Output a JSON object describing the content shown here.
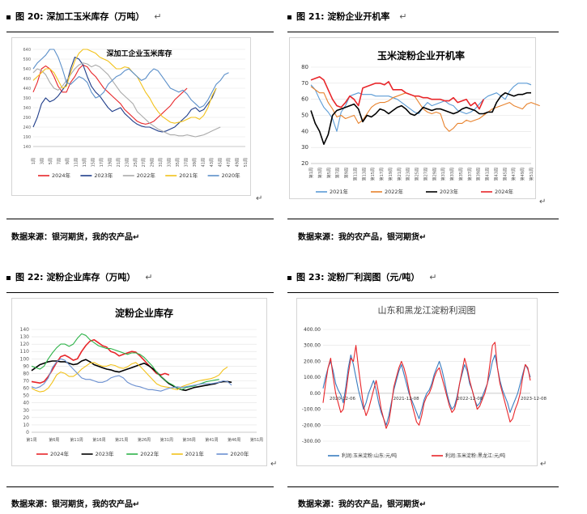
{
  "captions": {
    "c20": {
      "prefix": "图 20:",
      "title": "深加工玉米库存（万吨）"
    },
    "c21": {
      "prefix": "图 21:",
      "title": "淀粉企业开机率"
    },
    "c22": {
      "prefix": "图 22:",
      "title": "淀粉企业库存（万吨）"
    },
    "c23": {
      "prefix": "图 23:",
      "title": "淀粉厂利润图（元/吨）"
    }
  },
  "sources": {
    "left": "数据来源：银河期货，我的农产品",
    "right": "数据来源：我的农产品，银河期货"
  },
  "return_mark": "↵",
  "colors": {
    "c2024": "#e8262a",
    "c2023": "#1f3d8a",
    "c2022": "#aaaaaa",
    "c2021": "#f2c21b",
    "c2020": "#5b8fc9",
    "s21_2021": "#5b9bd5",
    "s21_2022": "#e8822c",
    "s21_2023": "#000000",
    "s21_2024": "#e8262a",
    "s22_2024": "#e8262a",
    "s22_2023": "#000000",
    "s22_2022": "#2fb34a",
    "s22_2021": "#f2c21b",
    "s22_2020": "#6a8fd0",
    "s23_sd": "#3a7dc0",
    "s23_hlj": "#e8262a"
  },
  "chart_data": [
    {
      "id": "chart20",
      "type": "line",
      "title": "深加工企业玉米库存",
      "ylim": [
        140,
        640
      ],
      "yticks": [
        140,
        190,
        240,
        290,
        340,
        390,
        440,
        490,
        540,
        590,
        640
      ],
      "x_count": 52,
      "xtick_labels": [
        "1周",
        "3周",
        "5周",
        "7周",
        "9周",
        "11周",
        "13周",
        "15周",
        "17周",
        "19周",
        "21周",
        "23周",
        "25周",
        "27周",
        "29周",
        "31周",
        "33周",
        "35周",
        "37周",
        "39周",
        "41周",
        "43周",
        "45周",
        "47周",
        "49周",
        "51周"
      ],
      "series": [
        {
          "name": "2024年",
          "color_key": "c2024",
          "values": [
            420,
            470,
            540,
            555,
            540,
            500,
            450,
            420,
            420,
            470,
            500,
            540,
            560,
            550,
            520,
            500,
            470,
            440,
            420,
            400,
            380,
            360,
            330,
            310,
            290,
            270,
            260,
            255,
            260,
            270,
            290,
            310,
            330,
            350,
            380,
            400,
            420,
            440
          ]
        },
        {
          "name": "2023年",
          "color_key": "c2023",
          "values": [
            240,
            290,
            360,
            390,
            370,
            380,
            400,
            430,
            460,
            540,
            600,
            590,
            560,
            500,
            450,
            420,
            400,
            370,
            340,
            320,
            330,
            340,
            310,
            290,
            270,
            255,
            245,
            240,
            240,
            230,
            220,
            215,
            220,
            230,
            240,
            260,
            280,
            300,
            330,
            340,
            320,
            330,
            360,
            390,
            440
          ]
        },
        {
          "name": "2022年",
          "color_key": "c2022",
          "values": [
            520,
            540,
            530,
            510,
            470,
            440,
            430,
            450,
            480,
            510,
            540,
            560,
            570,
            565,
            550,
            560,
            550,
            530,
            510,
            480,
            450,
            420,
            400,
            380,
            360,
            320,
            300,
            280,
            260,
            245,
            230,
            220,
            210,
            200,
            200,
            195,
            195,
            200,
            195,
            190,
            195,
            200,
            210,
            220,
            230,
            240
          ]
        },
        {
          "name": "2021年",
          "color_key": "c2021",
          "values": [
            480,
            500,
            520,
            540,
            540,
            520,
            480,
            440,
            450,
            520,
            580,
            620,
            640,
            640,
            630,
            620,
            600,
            590,
            580,
            560,
            540,
            540,
            550,
            545,
            520,
            500,
            460,
            420,
            390,
            350,
            320,
            295,
            280,
            265,
            260,
            265,
            270,
            280,
            290,
            290,
            280,
            300,
            340,
            400,
            440
          ]
        },
        {
          "name": "2020年",
          "color_key": "c2020",
          "values": [
            540,
            570,
            590,
            610,
            640,
            640,
            600,
            540,
            470,
            460,
            480,
            500,
            490,
            470,
            420,
            390,
            400,
            420,
            460,
            480,
            500,
            510,
            530,
            540,
            520,
            500,
            480,
            490,
            520,
            540,
            530,
            500,
            470,
            440,
            430,
            420,
            430,
            410,
            380,
            360,
            340,
            350,
            380,
            420,
            460,
            480,
            510,
            520
          ]
        }
      ],
      "legend": [
        "2024年",
        "2023年",
        "2022年",
        "2021年",
        "2020年"
      ]
    },
    {
      "id": "chart21",
      "type": "line",
      "title": "玉米淀粉企业开机率",
      "ylim": [
        20,
        80
      ],
      "yticks": [
        20,
        30,
        40,
        50,
        60,
        70,
        80
      ],
      "x_count": 52,
      "xtick_labels": [
        "第1周",
        "第3周",
        "第5周",
        "第7周",
        "第9周",
        "第11周",
        "第13周",
        "第15周",
        "第17周",
        "第19周",
        "第21周",
        "第23周",
        "第25周",
        "第27周",
        "第29周",
        "第31周",
        "第33周",
        "第35周",
        "第37周",
        "第39周",
        "第41周",
        "第43周",
        "第45周",
        "第47周",
        "第49周",
        "第51周"
      ],
      "series": [
        {
          "name": "2021年",
          "color_key": "s21_2021",
          "values": [
            69,
            66,
            60,
            55,
            52,
            48,
            40,
            52,
            56,
            62,
            63,
            64,
            63,
            63,
            63,
            62,
            62,
            62,
            62,
            61,
            60,
            58,
            56,
            54,
            52,
            51,
            55,
            58,
            56,
            57,
            58,
            59,
            57,
            56,
            53,
            52,
            51,
            52,
            54,
            57,
            60,
            62,
            63,
            64,
            62,
            60,
            65,
            68,
            70,
            70,
            70,
            69
          ]
        },
        {
          "name": "2022年",
          "color_key": "s21_2022",
          "values": [
            68,
            66,
            64,
            64,
            58,
            54,
            49,
            50,
            48,
            49,
            50,
            45,
            47,
            51,
            55,
            57,
            58,
            58,
            59,
            61,
            62,
            63,
            64,
            63,
            62,
            58,
            54,
            52,
            51,
            52,
            51,
            43,
            40,
            42,
            45,
            45,
            47,
            46,
            47,
            48,
            50,
            52,
            54,
            55,
            56,
            57,
            58,
            56,
            55,
            54,
            57,
            58,
            57,
            56
          ]
        },
        {
          "name": "2023年",
          "color_key": "s21_2023",
          "values": [
            53,
            45,
            40,
            32,
            38,
            50,
            53,
            54,
            55,
            56,
            57,
            54,
            46,
            50,
            49,
            51,
            54,
            53,
            51,
            53,
            55,
            56,
            54,
            51,
            50,
            52,
            55,
            54,
            53,
            54,
            54,
            53,
            52,
            51,
            52,
            54,
            55,
            54,
            53,
            51,
            51,
            52,
            52,
            58,
            62,
            64,
            63,
            62,
            63,
            63,
            64,
            64
          ]
        },
        {
          "name": "2024年",
          "color_key": "s21_2024",
          "values": [
            72,
            73,
            74,
            72,
            66,
            60,
            56,
            55,
            58,
            62,
            60,
            56,
            67,
            68,
            69,
            70,
            70,
            69,
            71,
            66,
            66,
            66,
            64,
            63,
            62,
            62,
            61,
            61,
            60,
            60,
            60,
            59,
            59,
            61,
            58,
            59,
            60,
            56,
            58,
            54,
            60
          ]
        }
      ],
      "legend": [
        "2021年",
        "2022年",
        "2023年",
        "2024年"
      ]
    },
    {
      "id": "chart22",
      "type": "line",
      "title": "淀粉企业库存",
      "ylim": [
        0,
        140
      ],
      "yticks": [
        0,
        10,
        20,
        30,
        40,
        50,
        60,
        70,
        80,
        90,
        100,
        110,
        120,
        130,
        140
      ],
      "x_count": 55,
      "xtick_labels": [
        "第1周",
        "第6周",
        "第11周",
        "第16周",
        "第21周",
        "第26周",
        "第31周",
        "第36周",
        "第41周",
        "第46周",
        "第51周"
      ],
      "series": [
        {
          "name": "2024年",
          "color_key": "s22_2024",
          "values": [
            69,
            68,
            67,
            69,
            76,
            85,
            95,
            103,
            105,
            102,
            98,
            100,
            110,
            118,
            124,
            126,
            122,
            118,
            116,
            110,
            108,
            104,
            106,
            108,
            110,
            109,
            104,
            98,
            92,
            86,
            80,
            78,
            80,
            78
          ]
        },
        {
          "name": "2023年",
          "color_key": "s22_2023",
          "values": [
            84,
            88,
            92,
            94,
            96,
            97,
            97,
            96,
            96,
            94,
            92,
            93,
            97,
            99,
            96,
            92,
            90,
            88,
            86,
            85,
            83,
            82,
            84,
            86,
            88,
            90,
            92,
            94,
            91,
            87,
            82,
            76,
            71,
            66,
            63,
            60,
            58,
            57,
            59,
            61,
            62,
            63,
            64,
            65,
            66,
            68,
            69,
            69,
            68
          ]
        },
        {
          "name": "2022年",
          "color_key": "s22_2022",
          "values": [
            90,
            88,
            86,
            90,
            100,
            108,
            115,
            120,
            120,
            117,
            120,
            128,
            134,
            132,
            126,
            122,
            118,
            116,
            114,
            114,
            112,
            110,
            108,
            106,
            108,
            108,
            106,
            102,
            96,
            90,
            82,
            76,
            71,
            67,
            64,
            60,
            58,
            61,
            62,
            63,
            65,
            67,
            69,
            70,
            71,
            72
          ]
        },
        {
          "name": "2021年",
          "color_key": "s22_2021",
          "values": [
            60,
            57,
            55,
            56,
            60,
            68,
            78,
            82,
            80,
            76,
            76,
            80,
            86,
            90,
            94,
            95,
            92,
            90,
            90,
            92,
            91,
            88,
            87,
            89,
            93,
            95,
            90,
            84,
            78,
            72,
            66,
            63,
            62,
            61,
            59,
            58,
            62,
            64,
            66,
            68,
            70,
            71,
            72,
            73,
            75,
            78,
            85,
            89
          ]
        },
        {
          "name": "2020年",
          "color_key": "s22_2020",
          "values": [
            62,
            60,
            62,
            66,
            74,
            88,
            96,
            100,
            98,
            92,
            86,
            80,
            74,
            72,
            72,
            70,
            68,
            68,
            70,
            74,
            76,
            77,
            74,
            68,
            65,
            63,
            62,
            60,
            58,
            58,
            57,
            56,
            58,
            60,
            61,
            62,
            61,
            62,
            63,
            64,
            65,
            66,
            66,
            66,
            67,
            68,
            70,
            69,
            64
          ]
        }
      ],
      "legend": [
        "2024年",
        "2023年",
        "2022年",
        "2021年",
        "2020年"
      ]
    },
    {
      "id": "chart23",
      "type": "line",
      "title": "山东和黑龙江淀粉利润图",
      "ylim": [
        -300,
        400
      ],
      "yticks": [
        -300,
        -200,
        -100,
        0,
        100,
        200,
        300,
        400
      ],
      "ytick_labels": [
        "-300.00",
        "-200.00",
        "-100.00",
        "0.00",
        "100.00",
        "200.00",
        "300.00",
        "400.00"
      ],
      "xtick_labels": [
        "2020-12-06",
        "2021-12-08",
        "2022-12-08",
        "2023-12-08"
      ],
      "series": [
        {
          "name": "利润:玉米淀粉:山东:元/吨",
          "color_key": "s23_sd",
          "values": [
            30,
            100,
            160,
            200,
            140,
            60,
            20,
            -10,
            -60,
            40,
            160,
            240,
            180,
            100,
            20,
            -40,
            -100,
            -60,
            0,
            40,
            80,
            20,
            -60,
            -120,
            -160,
            -200,
            -140,
            -60,
            20,
            80,
            140,
            180,
            120,
            60,
            0,
            -40,
            -80,
            -120,
            -160,
            -100,
            -40,
            0,
            20,
            60,
            120,
            160,
            200,
            150,
            80,
            0,
            -60,
            -100,
            -80,
            -20,
            60,
            120,
            180,
            140,
            60,
            20,
            -40,
            -80,
            -60,
            -20,
            20,
            60,
            120,
            200,
            240,
            160,
            80,
            20,
            -20,
            -60,
            -120,
            -80,
            -40,
            0,
            60,
            120,
            180,
            150,
            100
          ]
        },
        {
          "name": "利润:玉米淀粉:黑龙江:元/吨",
          "color_key": "s23_hlj",
          "values": [
            -60,
            60,
            160,
            220,
            100,
            0,
            -60,
            -120,
            -100,
            0,
            120,
            220,
            200,
            300,
            160,
            40,
            -80,
            -140,
            -100,
            -40,
            20,
            80,
            0,
            -100,
            -160,
            -220,
            -180,
            -80,
            40,
            100,
            160,
            200,
            160,
            100,
            20,
            -60,
            -120,
            -180,
            -200,
            -140,
            -60,
            -20,
            0,
            40,
            100,
            140,
            160,
            100,
            40,
            -20,
            -80,
            -120,
            -100,
            -40,
            60,
            140,
            220,
            160,
            80,
            20,
            -40,
            -100,
            -80,
            -40,
            0,
            60,
            180,
            300,
            320,
            160,
            60,
            0,
            -60,
            -120,
            -180,
            -160,
            -100,
            -60,
            0,
            100,
            180,
            160,
            80
          ]
        }
      ],
      "legend": [
        "利润:玉米淀粉:山东:元/吨",
        "利润:玉米淀粉:黑龙江:元/吨"
      ]
    }
  ]
}
